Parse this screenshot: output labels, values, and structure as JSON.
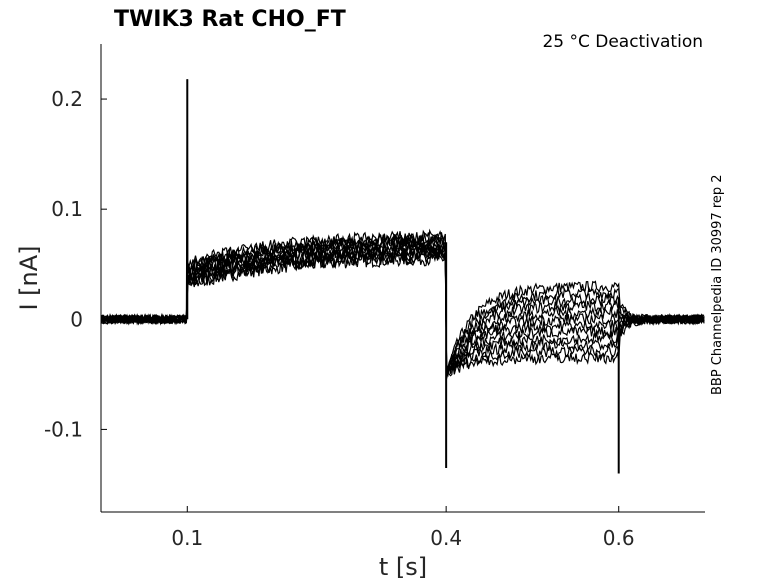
{
  "chart_data": {
    "type": "line",
    "title": "TWIK3  Rat  CHO_FT",
    "condition": "25 °C  Deactivation",
    "side_label": "BBP Channelpedia ID 30997 rep 2",
    "xlabel": "t [s]",
    "ylabel": "I [nA]",
    "xlim": [
      0.0,
      0.7
    ],
    "ylim": [
      -0.175,
      0.25
    ],
    "xticks": [
      0.1,
      0.4,
      0.6
    ],
    "xtick_labels": [
      "0.1",
      "0.4",
      "0.6"
    ],
    "yticks": [
      -0.1,
      0,
      0.1,
      0.2
    ],
    "ytick_labels": [
      "-0.1",
      "0",
      "0.1",
      "0.2"
    ],
    "grid": false,
    "line_color": "#000000",
    "protocol": {
      "step_on_s": 0.1,
      "step_off_s": 0.4,
      "tail_off_s": 0.6,
      "baseline_nA": 0.0,
      "step_start_range_nA": [
        0.03,
        0.05
      ],
      "step_end_range_nA": [
        0.055,
        0.075
      ],
      "tail_range_nA": [
        -0.035,
        0.03
      ],
      "onset_spike_peak_nA": 0.218,
      "offset_spike_min_nA": -0.135,
      "tail_end_spike_min_nA": -0.14,
      "sweeps": 12
    }
  }
}
